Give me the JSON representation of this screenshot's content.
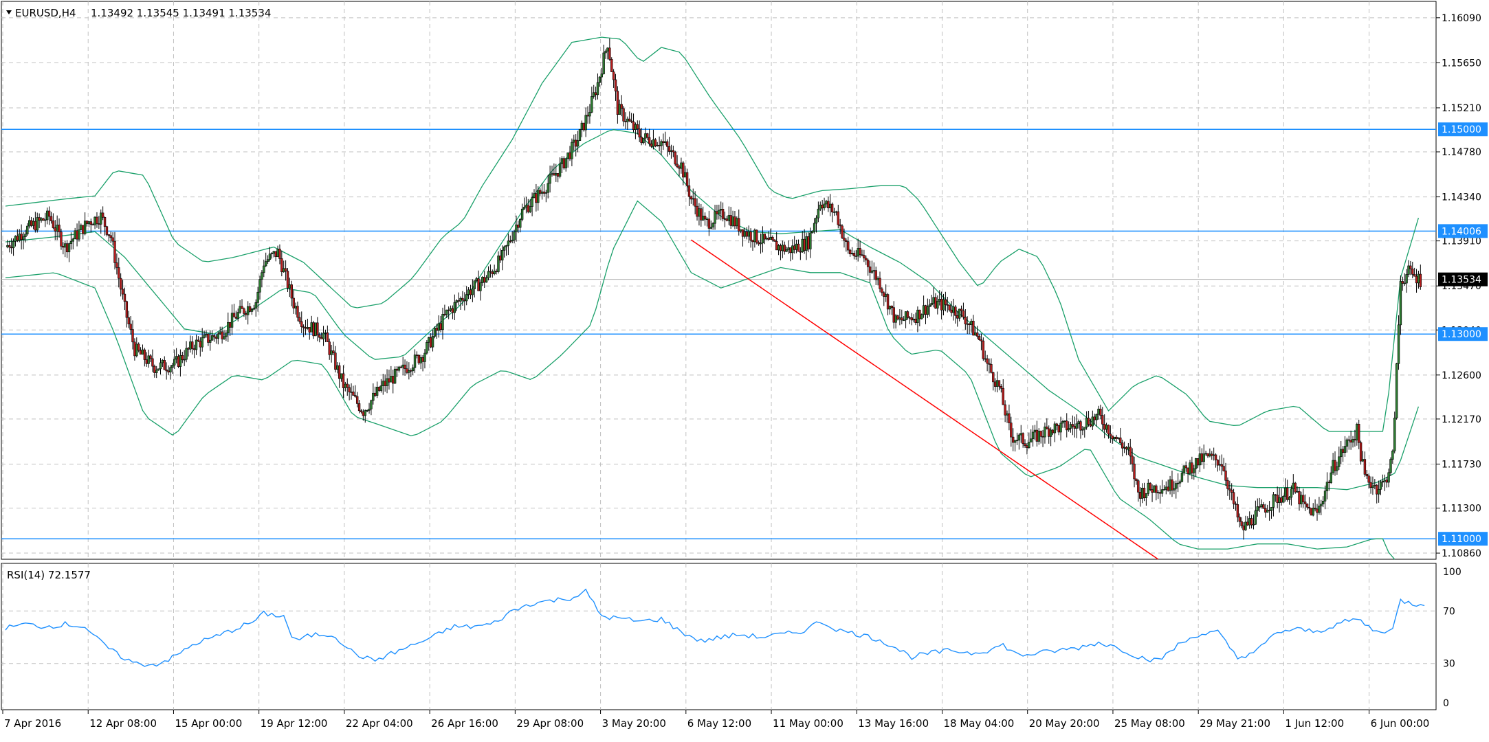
{
  "header": {
    "symbol": "EURUSD,H4",
    "ohlc": "1.13492 1.13545 1.13491 1.13534"
  },
  "indicator": {
    "label": "RSI(14) 72.1577"
  },
  "colors": {
    "grid": "#c0c0c0",
    "candle_up": "#2e7d32",
    "candle_down": "#b71c1c",
    "bollinger": "#1aa06a",
    "level_line": "#1e90ff",
    "trendline": "#ff0000",
    "rsi_line": "#1e90ff",
    "current_price_tag": "#000000"
  },
  "chart_data": [
    {
      "type": "candlestick",
      "title": "EURUSD,H4",
      "ylim": [
        1.108,
        1.1625
      ],
      "y_ticks": [
        "1.16090",
        "1.15650",
        "1.15210",
        "1.14780",
        "1.14340",
        "1.13910",
        "1.13470",
        "1.13040",
        "1.12600",
        "1.12170",
        "1.11730",
        "1.11300",
        "1.10860"
      ],
      "x_ticks": [
        "7 Apr 2016",
        "12 Apr 08:00",
        "15 Apr 00:00",
        "19 Apr 12:00",
        "22 Apr 04:00",
        "26 Apr 16:00",
        "29 Apr 08:00",
        "3 May 20:00",
        "6 May 12:00",
        "11 May 00:00",
        "13 May 16:00",
        "18 May 04:00",
        "20 May 20:00",
        "25 May 08:00",
        "29 May 21:00",
        "1 Jun 12:00",
        "6 Jun 00:00"
      ],
      "close_path": [
        [
          0,
          1.1385
        ],
        [
          10,
          1.1402
        ],
        [
          22,
          1.1415
        ],
        [
          30,
          1.1385
        ],
        [
          42,
          1.141
        ],
        [
          48,
          1.1415
        ],
        [
          53,
          1.1395
        ],
        [
          60,
          1.1325
        ],
        [
          65,
          1.1285
        ],
        [
          75,
          1.1268
        ],
        [
          85,
          1.127
        ],
        [
          95,
          1.129
        ],
        [
          108,
          1.13
        ],
        [
          116,
          1.1318
        ],
        [
          126,
          1.1332
        ],
        [
          130,
          1.137
        ],
        [
          137,
          1.138
        ],
        [
          145,
          1.133
        ],
        [
          150,
          1.131
        ],
        [
          160,
          1.13
        ],
        [
          170,
          1.125
        ],
        [
          180,
          1.1225
        ],
        [
          190,
          1.125
        ],
        [
          200,
          1.1265
        ],
        [
          210,
          1.128
        ],
        [
          222,
          1.132
        ],
        [
          232,
          1.134
        ],
        [
          242,
          1.1355
        ],
        [
          250,
          1.1375
        ],
        [
          260,
          1.142
        ],
        [
          270,
          1.144
        ],
        [
          280,
          1.1465
        ],
        [
          288,
          1.149
        ],
        [
          294,
          1.152
        ],
        [
          298,
          1.1545
        ],
        [
          303,
          1.1585
        ],
        [
          308,
          1.152
        ],
        [
          320,
          1.1492
        ],
        [
          330,
          1.1488
        ],
        [
          340,
          1.1465
        ],
        [
          345,
          1.1432
        ],
        [
          352,
          1.1408
        ],
        [
          362,
          1.1418
        ],
        [
          372,
          1.14
        ],
        [
          382,
          1.139
        ],
        [
          394,
          1.1382
        ],
        [
          404,
          1.139
        ],
        [
          410,
          1.143
        ],
        [
          418,
          1.1418
        ],
        [
          424,
          1.138
        ],
        [
          432,
          1.1375
        ],
        [
          440,
          1.135
        ],
        [
          448,
          1.1312
        ],
        [
          458,
          1.1318
        ],
        [
          466,
          1.133
        ],
        [
          474,
          1.1328
        ],
        [
          482,
          1.1318
        ],
        [
          490,
          1.1295
        ],
        [
          494,
          1.127
        ],
        [
          500,
          1.1248
        ],
        [
          506,
          1.12
        ],
        [
          514,
          1.1195
        ],
        [
          526,
          1.1208
        ],
        [
          538,
          1.121
        ],
        [
          550,
          1.122
        ],
        [
          558,
          1.12
        ],
        [
          565,
          1.1185
        ],
        [
          570,
          1.1145
        ],
        [
          578,
          1.115
        ],
        [
          586,
          1.1152
        ],
        [
          596,
          1.117
        ],
        [
          604,
          1.118
        ],
        [
          612,
          1.1175
        ],
        [
          617,
          1.114
        ],
        [
          622,
          1.1108
        ],
        [
          630,
          1.1125
        ],
        [
          640,
          1.114
        ],
        [
          648,
          1.1148
        ],
        [
          654,
          1.113
        ],
        [
          660,
          1.1125
        ],
        [
          668,
          1.117
        ],
        [
          674,
          1.119
        ],
        [
          680,
          1.1205
        ],
        [
          684,
          1.116
        ],
        [
          690,
          1.115
        ],
        [
          694,
          1.1155
        ],
        [
          698,
          1.118
        ],
        [
          702,
          1.1352
        ],
        [
          706,
          1.136
        ],
        [
          712,
          1.1353
        ]
      ],
      "bollinger_upper": [
        [
          0,
          1.1425
        ],
        [
          30,
          1.1432
        ],
        [
          45,
          1.1435
        ],
        [
          55,
          1.146
        ],
        [
          70,
          1.1455
        ],
        [
          85,
          1.139
        ],
        [
          100,
          1.137
        ],
        [
          115,
          1.1375
        ],
        [
          135,
          1.1385
        ],
        [
          150,
          1.137
        ],
        [
          175,
          1.1325
        ],
        [
          190,
          1.133
        ],
        [
          205,
          1.1355
        ],
        [
          220,
          1.1395
        ],
        [
          230,
          1.141
        ],
        [
          240,
          1.1445
        ],
        [
          255,
          1.149
        ],
        [
          270,
          1.1545
        ],
        [
          285,
          1.1585
        ],
        [
          300,
          1.159
        ],
        [
          310,
          1.1588
        ],
        [
          320,
          1.1565
        ],
        [
          330,
          1.158
        ],
        [
          340,
          1.1575
        ],
        [
          355,
          1.153
        ],
        [
          370,
          1.149
        ],
        [
          385,
          1.144
        ],
        [
          395,
          1.1432
        ],
        [
          410,
          1.144
        ],
        [
          425,
          1.1442
        ],
        [
          440,
          1.1445
        ],
        [
          452,
          1.1445
        ],
        [
          460,
          1.143
        ],
        [
          470,
          1.14
        ],
        [
          480,
          1.137
        ],
        [
          490,
          1.1345
        ],
        [
          500,
          1.137
        ],
        [
          510,
          1.1383
        ],
        [
          520,
          1.1375
        ],
        [
          530,
          1.1335
        ],
        [
          540,
          1.1275
        ],
        [
          555,
          1.1225
        ],
        [
          568,
          1.125
        ],
        [
          580,
          1.126
        ],
        [
          595,
          1.124
        ],
        [
          605,
          1.1215
        ],
        [
          620,
          1.121
        ],
        [
          635,
          1.1225
        ],
        [
          650,
          1.123
        ],
        [
          665,
          1.1205
        ],
        [
          680,
          1.1205
        ],
        [
          694,
          1.1205
        ],
        [
          702,
          1.1355
        ],
        [
          712,
          1.142
        ]
      ],
      "bollinger_middle": [
        [
          0,
          1.139
        ],
        [
          25,
          1.1395
        ],
        [
          45,
          1.14
        ],
        [
          60,
          1.1375
        ],
        [
          75,
          1.134
        ],
        [
          90,
          1.1305
        ],
        [
          105,
          1.13
        ],
        [
          125,
          1.1325
        ],
        [
          140,
          1.1345
        ],
        [
          155,
          1.134
        ],
        [
          170,
          1.13
        ],
        [
          185,
          1.1275
        ],
        [
          200,
          1.1278
        ],
        [
          215,
          1.1305
        ],
        [
          230,
          1.133
        ],
        [
          245,
          1.1375
        ],
        [
          260,
          1.142
        ],
        [
          275,
          1.146
        ],
        [
          290,
          1.1485
        ],
        [
          305,
          1.15
        ],
        [
          318,
          1.1496
        ],
        [
          330,
          1.1475
        ],
        [
          345,
          1.144
        ],
        [
          360,
          1.1415
        ],
        [
          375,
          1.14
        ],
        [
          390,
          1.1398
        ],
        [
          405,
          1.14
        ],
        [
          420,
          1.1402
        ],
        [
          435,
          1.1385
        ],
        [
          450,
          1.137
        ],
        [
          465,
          1.135
        ],
        [
          480,
          1.132
        ],
        [
          495,
          1.1295
        ],
        [
          510,
          1.127
        ],
        [
          525,
          1.1245
        ],
        [
          540,
          1.1225
        ],
        [
          555,
          1.12
        ],
        [
          570,
          1.118
        ],
        [
          585,
          1.117
        ],
        [
          600,
          1.116
        ],
        [
          615,
          1.1152
        ],
        [
          630,
          1.115
        ],
        [
          645,
          1.115
        ],
        [
          660,
          1.115
        ],
        [
          675,
          1.1148
        ],
        [
          690,
          1.1155
        ],
        [
          700,
          1.1165
        ],
        [
          712,
          1.1235
        ]
      ],
      "bollinger_lower": [
        [
          0,
          1.1355
        ],
        [
          25,
          1.136
        ],
        [
          45,
          1.1345
        ],
        [
          55,
          1.13
        ],
        [
          70,
          1.122
        ],
        [
          85,
          1.12
        ],
        [
          100,
          1.124
        ],
        [
          115,
          1.126
        ],
        [
          130,
          1.1255
        ],
        [
          145,
          1.1275
        ],
        [
          160,
          1.127
        ],
        [
          175,
          1.122
        ],
        [
          190,
          1.121
        ],
        [
          205,
          1.12
        ],
        [
          220,
          1.1215
        ],
        [
          235,
          1.125
        ],
        [
          250,
          1.1265
        ],
        [
          265,
          1.1255
        ],
        [
          280,
          1.128
        ],
        [
          295,
          1.131
        ],
        [
          305,
          1.138
        ],
        [
          318,
          1.143
        ],
        [
          330,
          1.141
        ],
        [
          345,
          1.136
        ],
        [
          360,
          1.1345
        ],
        [
          375,
          1.1355
        ],
        [
          390,
          1.1365
        ],
        [
          405,
          1.136
        ],
        [
          420,
          1.136
        ],
        [
          435,
          1.135
        ],
        [
          445,
          1.13
        ],
        [
          455,
          1.128
        ],
        [
          470,
          1.1285
        ],
        [
          485,
          1.126
        ],
        [
          500,
          1.1185
        ],
        [
          515,
          1.116
        ],
        [
          530,
          1.117
        ],
        [
          545,
          1.119
        ],
        [
          560,
          1.114
        ],
        [
          575,
          1.112
        ],
        [
          590,
          1.1095
        ],
        [
          600,
          1.109
        ],
        [
          615,
          1.109
        ],
        [
          630,
          1.1095
        ],
        [
          645,
          1.1095
        ],
        [
          660,
          1.109
        ],
        [
          675,
          1.1092
        ],
        [
          688,
          1.11
        ],
        [
          694,
          1.11
        ],
        [
          700,
          1.106
        ]
      ],
      "horizontal_levels": [
        "1.15000",
        "1.14006",
        "1.13000",
        "1.11000"
      ],
      "current_price": "1.13534",
      "trendline": [
        [
          345,
          1.1392
        ],
        [
          580,
          1.1075
        ]
      ]
    },
    {
      "type": "line",
      "title": "RSI(14) 72.1577",
      "ylim": [
        0,
        100
      ],
      "y_ticks": [
        "100",
        "70",
        "30",
        "0"
      ],
      "values": [
        [
          0,
          57
        ],
        [
          10,
          60
        ],
        [
          20,
          58
        ],
        [
          30,
          60
        ],
        [
          40,
          58
        ],
        [
          45,
          50
        ],
        [
          55,
          38
        ],
        [
          65,
          30
        ],
        [
          75,
          29
        ],
        [
          85,
          35
        ],
        [
          95,
          45
        ],
        [
          105,
          50
        ],
        [
          115,
          56
        ],
        [
          125,
          62
        ],
        [
          130,
          68
        ],
        [
          140,
          66
        ],
        [
          145,
          47
        ],
        [
          155,
          52
        ],
        [
          165,
          52
        ],
        [
          175,
          38
        ],
        [
          185,
          32
        ],
        [
          195,
          38
        ],
        [
          205,
          44
        ],
        [
          215,
          50
        ],
        [
          225,
          58
        ],
        [
          235,
          58
        ],
        [
          245,
          60
        ],
        [
          255,
          70
        ],
        [
          265,
          76
        ],
        [
          275,
          78
        ],
        [
          285,
          80
        ],
        [
          292,
          85
        ],
        [
          300,
          66
        ],
        [
          310,
          64
        ],
        [
          320,
          62
        ],
        [
          330,
          64
        ],
        [
          340,
          54
        ],
        [
          350,
          47
        ],
        [
          360,
          50
        ],
        [
          370,
          52
        ],
        [
          380,
          50
        ],
        [
          390,
          52
        ],
        [
          400,
          54
        ],
        [
          410,
          62
        ],
        [
          420,
          55
        ],
        [
          430,
          52
        ],
        [
          440,
          48
        ],
        [
          448,
          42
        ],
        [
          456,
          35
        ],
        [
          466,
          38
        ],
        [
          476,
          40
        ],
        [
          486,
          38
        ],
        [
          494,
          40
        ],
        [
          502,
          44
        ],
        [
          510,
          36
        ],
        [
          520,
          38
        ],
        [
          530,
          40
        ],
        [
          540,
          42
        ],
        [
          550,
          46
        ],
        [
          560,
          42
        ],
        [
          570,
          35
        ],
        [
          580,
          32
        ],
        [
          590,
          44
        ],
        [
          600,
          52
        ],
        [
          610,
          54
        ],
        [
          620,
          34
        ],
        [
          630,
          40
        ],
        [
          640,
          54
        ],
        [
          650,
          56
        ],
        [
          660,
          54
        ],
        [
          670,
          60
        ],
        [
          680,
          64
        ],
        [
          690,
          54
        ],
        [
          698,
          56
        ],
        [
          702,
          78
        ],
        [
          710,
          75
        ],
        [
          715,
          76
        ]
      ]
    }
  ]
}
